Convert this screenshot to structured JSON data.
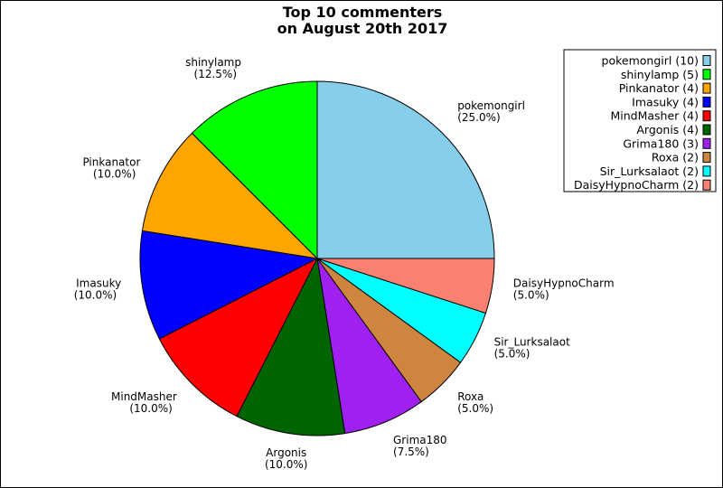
{
  "chart_data": {
    "type": "pie",
    "title_lines": [
      "Top 10 commenters",
      "on August 20th 2017"
    ],
    "start_angle": "90 degrees (top)",
    "direction": "clockwise",
    "legend_placement": "top-right",
    "slices": [
      {
        "name": "pokemongirl",
        "value": 10,
        "percent_label": "(25.0%)",
        "legend_label": "pokemongirl (10)",
        "color": "#87ceeb"
      },
      {
        "name": "DaisyHypnoCharm",
        "value": 2,
        "percent_label": "(5.0%)",
        "legend_label": "DaisyHypnoCharm (2)",
        "color": "#fa8072"
      },
      {
        "name": "Sir_Lurksalaot",
        "value": 2,
        "percent_label": "(5.0%)",
        "legend_label": "Sir_Lurksalaot (2)",
        "color": "#00ffff"
      },
      {
        "name": "Roxa",
        "value": 2,
        "percent_label": "(5.0%)",
        "legend_label": "Roxa (2)",
        "color": "#cd853f"
      },
      {
        "name": "Grima180",
        "value": 3,
        "percent_label": "(7.5%)",
        "legend_label": "Grima180 (3)",
        "color": "#a020f0"
      },
      {
        "name": "Argonis",
        "value": 4,
        "percent_label": "(10.0%)",
        "legend_label": "Argonis (4)",
        "color": "#006400"
      },
      {
        "name": "MindMasher",
        "value": 4,
        "percent_label": "(10.0%)",
        "legend_label": "MindMasher (4)",
        "color": "#ff0000"
      },
      {
        "name": "Imasuky",
        "value": 4,
        "percent_label": "(10.0%)",
        "legend_label": "Imasuky (4)",
        "color": "#0000ff"
      },
      {
        "name": "Pinkanator",
        "value": 4,
        "percent_label": "(10.0%)",
        "legend_label": "Pinkanator (4)",
        "color": "#ffa500"
      },
      {
        "name": "shinylamp",
        "value": 5,
        "percent_label": "(12.5%)",
        "legend_label": "shinylamp (5)",
        "color": "#00ff00"
      }
    ],
    "legend_order": [
      "pokemongirl",
      "shinylamp",
      "Pinkanator",
      "Imasuky",
      "MindMasher",
      "Argonis",
      "Grima180",
      "Roxa",
      "Sir_Lurksalaot",
      "DaisyHypnoCharm"
    ]
  }
}
